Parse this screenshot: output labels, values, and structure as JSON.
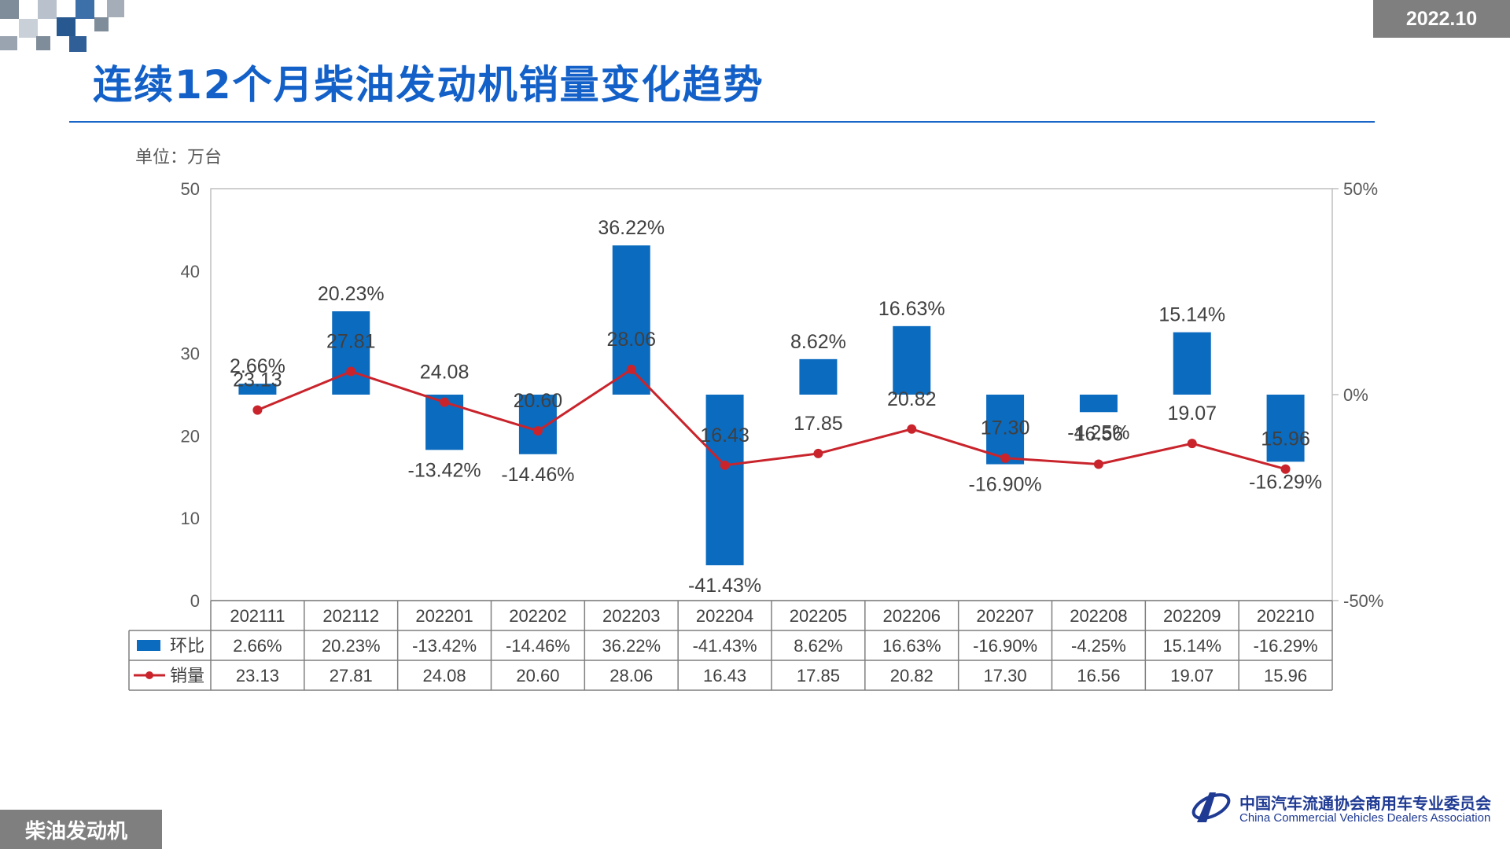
{
  "header": {
    "date": "2022.10",
    "title": "连续12个月柴油发动机销量变化趋势"
  },
  "chart_meta": {
    "unit": "单位：万台"
  },
  "footer": {
    "section_tag": "柴油发动机",
    "org_cn": "中国汽车流通协会商用车专业委员会",
    "org_en": "China Commercial Vehicles Dealers Association"
  },
  "colors": {
    "title": "#1260c8",
    "bar": "#0b6bbf",
    "line": "#c9242c",
    "badge": "#7f7f7f"
  },
  "chart_data": {
    "type": "bar+line",
    "categories": [
      "202111",
      "202112",
      "202201",
      "202202",
      "202203",
      "202204",
      "202205",
      "202206",
      "202207",
      "202208",
      "202209",
      "202210"
    ],
    "series": [
      {
        "name": "环比",
        "kind": "bar",
        "axis": "right",
        "values": [
          2.66,
          20.23,
          -13.42,
          -14.46,
          36.22,
          -41.43,
          8.62,
          16.63,
          -16.9,
          -4.25,
          15.14,
          -16.29
        ],
        "labels": [
          "2.66%",
          "20.23%",
          "-13.42%",
          "-14.46%",
          "36.22%",
          "-41.43%",
          "8.62%",
          "16.63%",
          "-16.90%",
          "-4.25%",
          "15.14%",
          "-16.29%"
        ]
      },
      {
        "name": "销量",
        "kind": "line",
        "axis": "left",
        "values": [
          23.13,
          27.81,
          24.08,
          20.6,
          28.06,
          16.43,
          17.85,
          20.82,
          17.3,
          16.56,
          19.07,
          15.96
        ],
        "labels": [
          "23.13",
          "27.81",
          "24.08",
          "20.60",
          "28.06",
          "16.43",
          "17.85",
          "20.82",
          "17.30",
          "16.56",
          "19.07",
          "15.96"
        ]
      }
    ],
    "y_left": {
      "ylim": [
        0,
        50
      ],
      "ticks": [
        "0",
        "10",
        "20",
        "30",
        "40",
        "50"
      ]
    },
    "y_right": {
      "ylim": [
        -50,
        50
      ],
      "ticks": [
        "-50%",
        "0%",
        "50%"
      ]
    },
    "data_table": true,
    "grid": false
  }
}
